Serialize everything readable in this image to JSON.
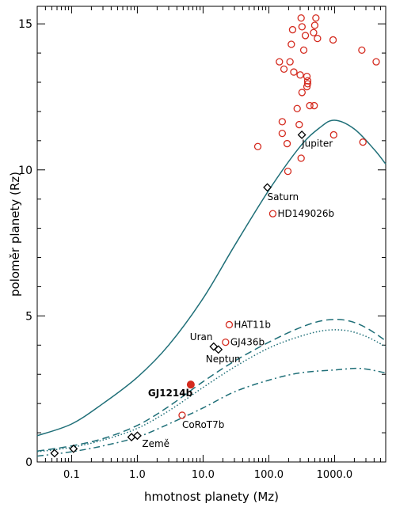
{
  "chart_data": {
    "type": "scatter",
    "title": "",
    "xlabel": "hmotnost planety (Mz)",
    "ylabel": "poloměr planety (Rz)",
    "xscale": "log",
    "xlim": [
      0.03,
      6000
    ],
    "ylim": [
      0,
      15.6
    ],
    "x_ticks": [
      {
        "value": 0.1,
        "label": "0.1"
      },
      {
        "value": 1,
        "label": "1.0"
      },
      {
        "value": 10,
        "label": "10.0"
      },
      {
        "value": 100,
        "label": "100.0"
      },
      {
        "value": 1000,
        "label": "1000.0"
      }
    ],
    "y_ticks": [
      {
        "value": 0,
        "label": "0"
      },
      {
        "value": 5,
        "label": "5"
      },
      {
        "value": 10,
        "label": "10"
      },
      {
        "value": 15,
        "label": "15"
      }
    ],
    "grid": false,
    "colors": {
      "exoplanet": "#d42a1e",
      "model": "#1f6f78",
      "solar": "#000000"
    },
    "series": [
      {
        "kind": "curve",
        "line_style": "solid",
        "points": [
          [
            0.03,
            0.9
          ],
          [
            0.1,
            1.3
          ],
          [
            0.3,
            2.0
          ],
          [
            1,
            2.9
          ],
          [
            3,
            4.0
          ],
          [
            10,
            5.6
          ],
          [
            30,
            7.4
          ],
          [
            100,
            9.3
          ],
          [
            300,
            10.8
          ],
          [
            600,
            11.45
          ],
          [
            1000,
            11.7
          ],
          [
            2000,
            11.4
          ],
          [
            4000,
            10.7
          ],
          [
            6000,
            10.2
          ]
        ]
      },
      {
        "kind": "curve",
        "line_style": "dashed",
        "points": [
          [
            0.03,
            0.37
          ],
          [
            0.1,
            0.55
          ],
          [
            0.3,
            0.8
          ],
          [
            1,
            1.25
          ],
          [
            3,
            1.9
          ],
          [
            10,
            2.75
          ],
          [
            30,
            3.45
          ],
          [
            100,
            4.1
          ],
          [
            300,
            4.6
          ],
          [
            700,
            4.85
          ],
          [
            1500,
            4.85
          ],
          [
            3000,
            4.6
          ],
          [
            6000,
            4.15
          ]
        ]
      },
      {
        "kind": "curve",
        "line_style": "dotted",
        "points": [
          [
            0.03,
            0.35
          ],
          [
            0.1,
            0.5
          ],
          [
            0.3,
            0.75
          ],
          [
            1,
            1.15
          ],
          [
            3,
            1.75
          ],
          [
            10,
            2.55
          ],
          [
            30,
            3.25
          ],
          [
            100,
            3.9
          ],
          [
            300,
            4.3
          ],
          [
            700,
            4.5
          ],
          [
            1500,
            4.5
          ],
          [
            3000,
            4.3
          ],
          [
            6000,
            3.95
          ]
        ]
      },
      {
        "kind": "curve",
        "line_style": "dashdot",
        "points": [
          [
            0.03,
            0.2
          ],
          [
            0.1,
            0.35
          ],
          [
            0.3,
            0.55
          ],
          [
            1,
            0.85
          ],
          [
            3,
            1.3
          ],
          [
            10,
            1.85
          ],
          [
            30,
            2.4
          ],
          [
            100,
            2.8
          ],
          [
            300,
            3.05
          ],
          [
            1000,
            3.15
          ],
          [
            2500,
            3.2
          ],
          [
            6000,
            3.05
          ]
        ]
      },
      {
        "kind": "scatter",
        "marker": "open-circle",
        "points": [
          [
            310,
            15.2
          ],
          [
            520,
            15.2
          ],
          [
            230,
            14.8
          ],
          [
            320,
            14.9
          ],
          [
            500,
            14.95
          ],
          [
            480,
            14.7
          ],
          [
            360,
            14.6
          ],
          [
            550,
            14.5
          ],
          [
            950,
            14.45
          ],
          [
            2600,
            14.1
          ],
          [
            220,
            14.3
          ],
          [
            340,
            14.1
          ],
          [
            145,
            13.7
          ],
          [
            210,
            13.7
          ],
          [
            170,
            13.45
          ],
          [
            240,
            13.35
          ],
          [
            300,
            13.25
          ],
          [
            380,
            13.2
          ],
          [
            4300,
            13.7
          ],
          [
            390,
            13.05
          ],
          [
            390,
            12.95
          ],
          [
            380,
            12.85
          ],
          [
            320,
            12.65
          ],
          [
            420,
            12.2
          ],
          [
            490,
            12.2
          ],
          [
            270,
            12.1
          ],
          [
            160,
            11.65
          ],
          [
            290,
            11.55
          ],
          [
            160,
            11.25
          ],
          [
            970,
            11.2
          ],
          [
            190,
            10.9
          ],
          [
            2700,
            10.95
          ],
          [
            68,
            10.8
          ],
          [
            310,
            10.4
          ],
          [
            195,
            9.95
          ]
        ]
      },
      {
        "kind": "labeled-planets",
        "marker": "open-circle",
        "points": [
          {
            "x": 115,
            "y": 8.5,
            "label": "HD149026b"
          },
          {
            "x": 25,
            "y": 4.7,
            "label": "HAT11b"
          },
          {
            "x": 22,
            "y": 4.1,
            "label": "GJ436b"
          },
          {
            "x": 4.8,
            "y": 1.6,
            "label": "CoRoT7b"
          }
        ]
      },
      {
        "kind": "highlight",
        "marker": "filled-circle",
        "points": [
          {
            "x": 6.5,
            "y": 2.65,
            "label": "GJ1214b"
          }
        ]
      },
      {
        "kind": "solar-system",
        "marker": "open-diamond",
        "points": [
          {
            "x": 0.055,
            "y": 0.3,
            "label": ""
          },
          {
            "x": 0.107,
            "y": 0.45,
            "label": ""
          },
          {
            "x": 0.815,
            "y": 0.85,
            "label": ""
          },
          {
            "x": 1.0,
            "y": 0.9,
            "label": "Země"
          },
          {
            "x": 14.5,
            "y": 3.95,
            "label": "Uran"
          },
          {
            "x": 17.1,
            "y": 3.85,
            "label": "Neptun"
          },
          {
            "x": 95,
            "y": 9.4,
            "label": "Saturn"
          },
          {
            "x": 318,
            "y": 11.2,
            "label": "Jupiter"
          }
        ]
      }
    ]
  }
}
